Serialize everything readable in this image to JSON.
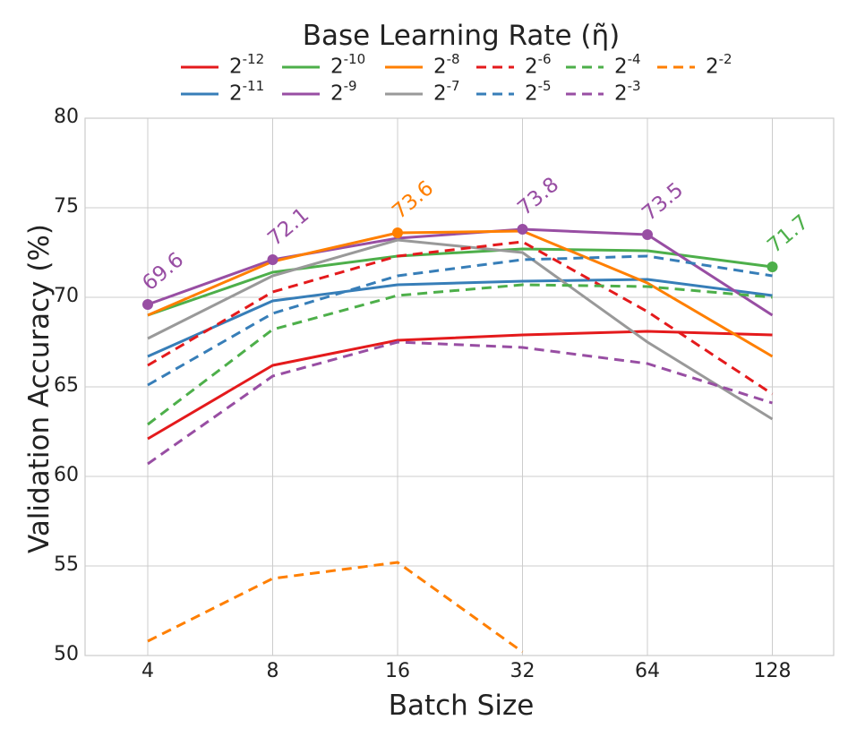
{
  "chart_data": {
    "type": "line",
    "title": "",
    "legend_title": "Base Learning Rate (η̃)",
    "xlabel": "Batch Size",
    "ylabel": "Validation Accuracy (%)",
    "categories": [
      "4",
      "8",
      "16",
      "32",
      "64",
      "128"
    ],
    "ylim": [
      50,
      80
    ],
    "yticks": [
      "50",
      "55",
      "60",
      "65",
      "70",
      "75",
      "80"
    ],
    "grid": true,
    "legend_position": "top-center",
    "series": [
      {
        "name": "2^-12",
        "base": "2",
        "exp": "-12",
        "color": "#e41a1c",
        "style": "solid",
        "values": [
          62.1,
          66.2,
          67.6,
          67.9,
          68.1,
          67.9
        ]
      },
      {
        "name": "2^-11",
        "base": "2",
        "exp": "-11",
        "color": "#377eb8",
        "style": "solid",
        "values": [
          66.7,
          69.8,
          70.7,
          70.9,
          71.0,
          70.1
        ]
      },
      {
        "name": "2^-10",
        "base": "2",
        "exp": "-10",
        "color": "#4daf4a",
        "style": "solid",
        "values": [
          69.0,
          71.4,
          72.3,
          72.7,
          72.6,
          71.7
        ]
      },
      {
        "name": "2^-9",
        "base": "2",
        "exp": "-9",
        "color": "#984ea3",
        "style": "solid",
        "values": [
          69.6,
          72.1,
          73.3,
          73.8,
          73.5,
          69.0
        ]
      },
      {
        "name": "2^-8",
        "base": "2",
        "exp": "-8",
        "color": "#ff7f00",
        "style": "solid",
        "values": [
          69.0,
          72.0,
          73.6,
          73.7,
          70.8,
          66.7
        ]
      },
      {
        "name": "2^-7",
        "base": "2",
        "exp": "-7",
        "color": "#999999",
        "style": "solid",
        "values": [
          67.7,
          71.2,
          73.2,
          72.5,
          67.5,
          63.2
        ]
      },
      {
        "name": "2^-6",
        "base": "2",
        "exp": "-6",
        "color": "#e41a1c",
        "style": "dashed",
        "values": [
          66.2,
          70.3,
          72.3,
          73.1,
          69.2,
          64.6
        ]
      },
      {
        "name": "2^-5",
        "base": "2",
        "exp": "-5",
        "color": "#377eb8",
        "style": "dashed",
        "values": [
          65.1,
          69.1,
          71.2,
          72.1,
          72.3,
          71.2
        ]
      },
      {
        "name": "2^-4",
        "base": "2",
        "exp": "-4",
        "color": "#4daf4a",
        "style": "dashed",
        "values": [
          62.9,
          68.2,
          70.1,
          70.7,
          70.6,
          70.0
        ]
      },
      {
        "name": "2^-3",
        "base": "2",
        "exp": "-3",
        "color": "#984ea3",
        "style": "dashed",
        "values": [
          60.7,
          65.6,
          67.5,
          67.2,
          66.3,
          64.1
        ]
      },
      {
        "name": "2^-2",
        "base": "2",
        "exp": "-2",
        "color": "#ff7f00",
        "style": "dashed",
        "values": [
          50.8,
          54.3,
          55.2,
          50.2,
          null,
          null
        ]
      }
    ],
    "peaks": [
      {
        "x_index": 0,
        "value": 69.6,
        "label": "69.6",
        "color": "#984ea3"
      },
      {
        "x_index": 1,
        "value": 72.1,
        "label": "72.1",
        "color": "#984ea3"
      },
      {
        "x_index": 2,
        "value": 73.6,
        "label": "73.6",
        "color": "#ff7f00"
      },
      {
        "x_index": 3,
        "value": 73.8,
        "label": "73.8",
        "color": "#984ea3"
      },
      {
        "x_index": 4,
        "value": 73.5,
        "label": "73.5",
        "color": "#984ea3"
      },
      {
        "x_index": 5,
        "value": 71.7,
        "label": "71.7",
        "color": "#4daf4a"
      }
    ]
  }
}
